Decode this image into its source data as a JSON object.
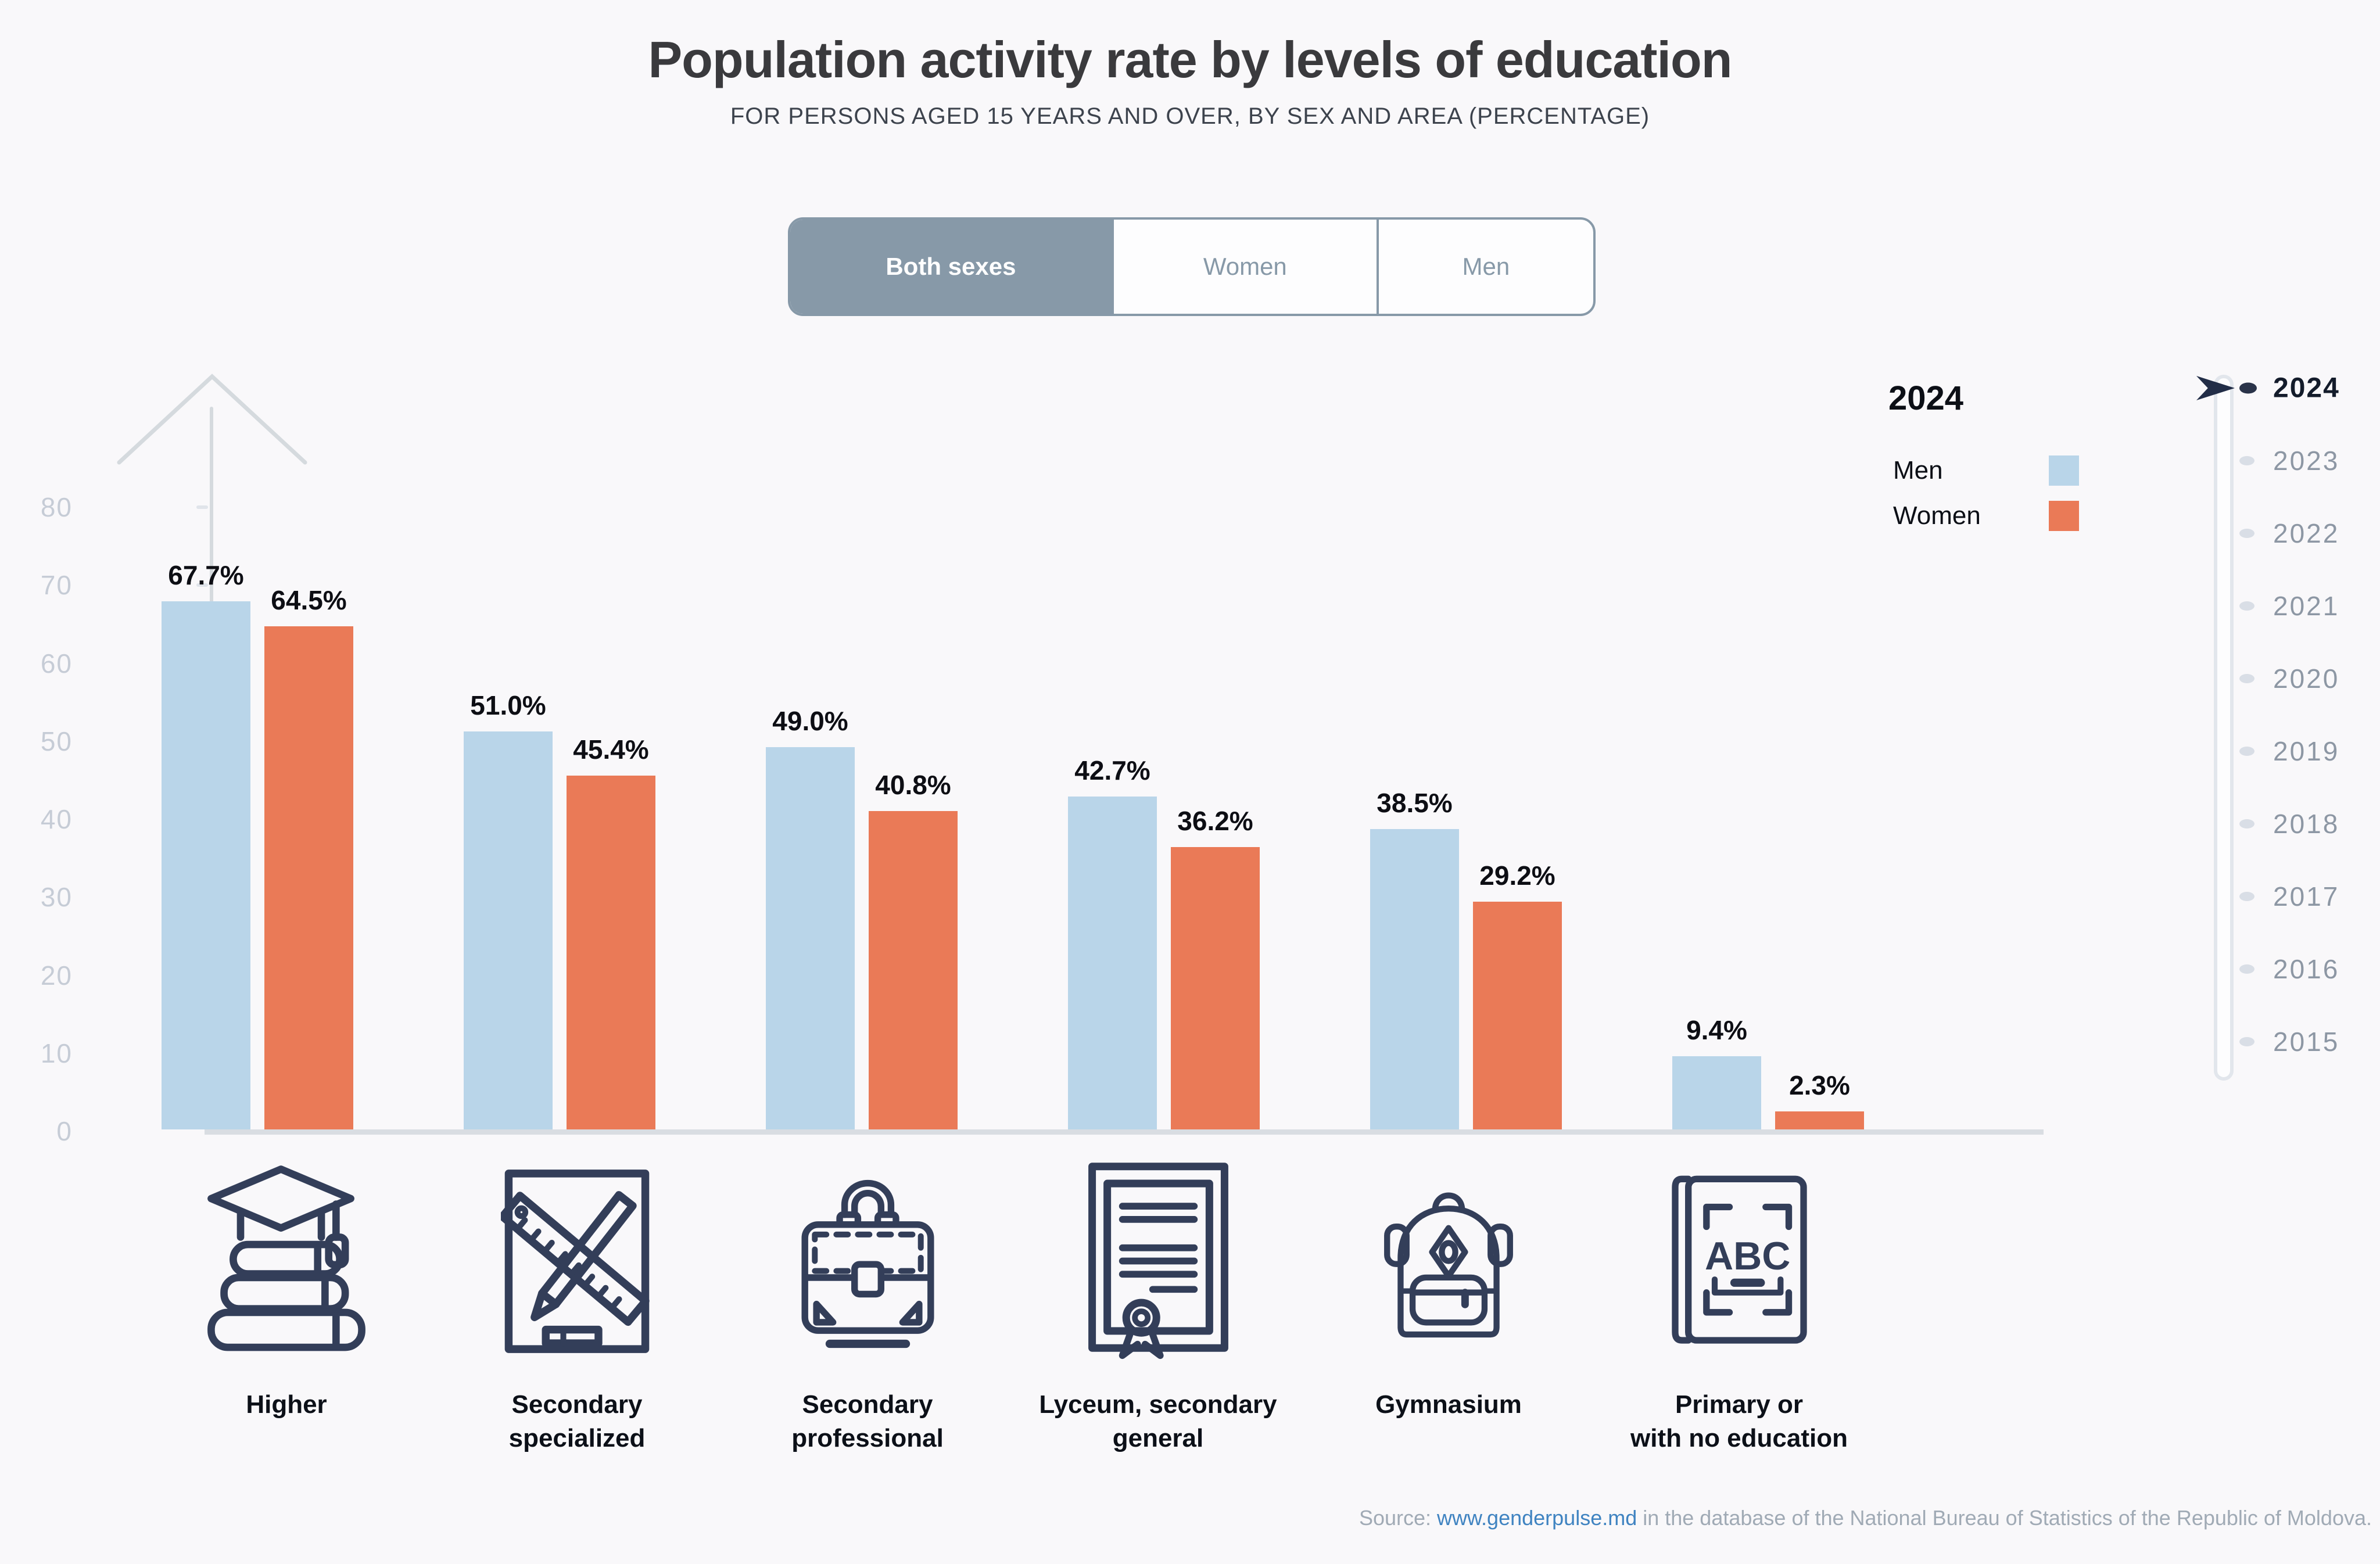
{
  "title": "Population activity rate by levels of education",
  "subtitle": "FOR PERSONS AGED 15 YEARS AND OVER, BY SEX AND AREA (PERCENTAGE)",
  "toggle": {
    "options": [
      {
        "label": "Both sexes",
        "selected": true
      },
      {
        "label": "Women",
        "selected": false
      },
      {
        "label": "Men",
        "selected": false
      }
    ]
  },
  "legend": {
    "year": "2024",
    "series": [
      {
        "name": "Men",
        "color": "#b9d5e9"
      },
      {
        "name": "Women",
        "color": "#ea7a57"
      }
    ]
  },
  "timeline": {
    "years": [
      "2024",
      "2023",
      "2022",
      "2021",
      "2020",
      "2019",
      "2018",
      "2017",
      "2016",
      "2015"
    ],
    "selected": "2024"
  },
  "chart_data": {
    "type": "bar",
    "title": "Population activity rate by levels of education",
    "subtitle": "For persons aged 15 years and over, by sex and area (percentage)",
    "categories": [
      "Higher",
      "Secondary specialized",
      "Secondary professional",
      "Lyceum, secondary general",
      "Gymnasium",
      "Primary or with no education"
    ],
    "category_lines": [
      [
        "Higher"
      ],
      [
        "Secondary",
        "specialized"
      ],
      [
        "Secondary",
        "professional"
      ],
      [
        "Lyceum, secondary",
        "general"
      ],
      [
        "Gymnasium"
      ],
      [
        "Primary or",
        "with no education"
      ]
    ],
    "series": [
      {
        "name": "Men",
        "color": "#b9d5e9",
        "values": [
          67.7,
          51.0,
          49.0,
          42.7,
          38.5,
          9.4
        ]
      },
      {
        "name": "Women",
        "color": "#ea7a57",
        "values": [
          64.5,
          45.4,
          40.8,
          36.2,
          29.2,
          2.3
        ]
      }
    ],
    "value_suffix": "%",
    "ylim": [
      0,
      80
    ],
    "yticks": [
      0,
      10,
      20,
      30,
      40,
      50,
      60,
      70,
      80
    ],
    "grid": false,
    "legend_position": "top-right",
    "icons": [
      "graduation-cap-books-icon",
      "ruler-pencil-icon",
      "briefcase-icon",
      "certificate-icon",
      "backpack-icon",
      "abc-book-icon"
    ]
  },
  "source": {
    "prefix": "Source: ",
    "link": "www.genderpulse.md",
    "suffix": " in the database of the National Bureau of Statistics of the Republic of Moldova."
  },
  "theme": {
    "background": "#f9f8fa",
    "bar_men": "#b9d5e9",
    "bar_women": "#ea7a57",
    "icon_color": "#333e59",
    "toggle_slate": "#8799a8",
    "axis_gray": "#d5dade"
  }
}
